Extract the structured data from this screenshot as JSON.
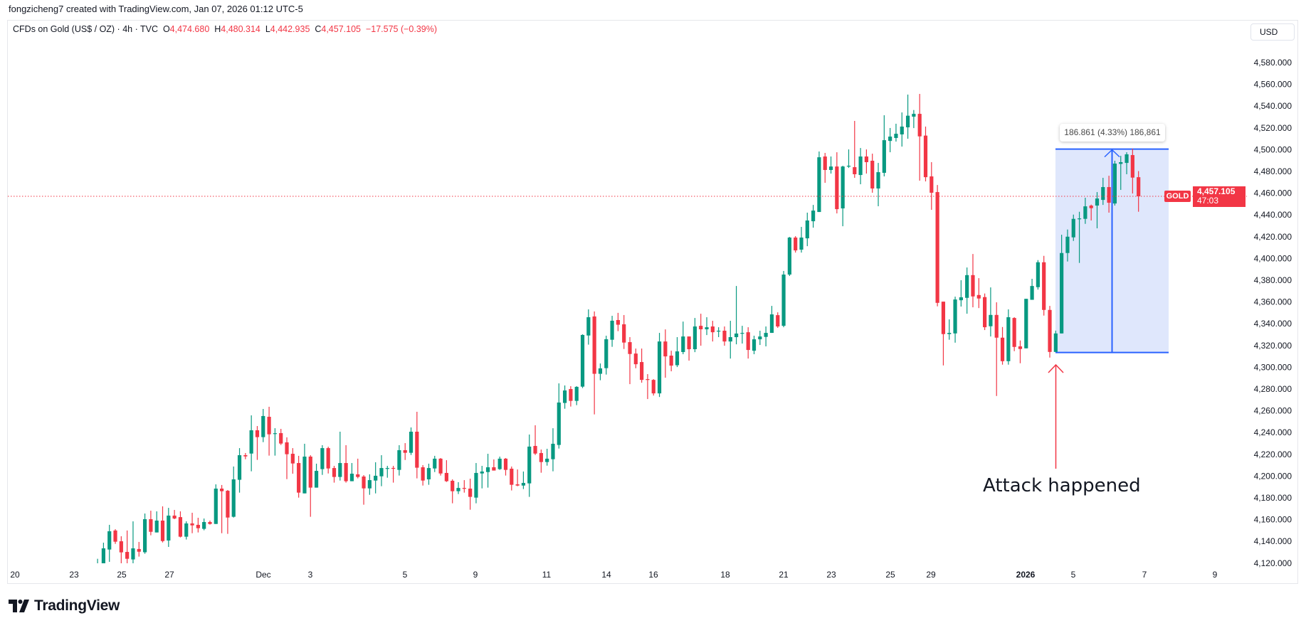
{
  "credit": "fongzicheng7 created with TradingView.com, Jan 07, 2026 01:12 UTC-5",
  "legend": {
    "symbol": "CFDs on Gold (US$ / OZ) · 4h · TVC",
    "o_label": "O",
    "o": "4,474.680",
    "h_label": "H",
    "h": "4,480.314",
    "l_label": "L",
    "l": "4,442.935",
    "c_label": "C",
    "c": "4,457.105",
    "change": "−17.575 (−0.39%)"
  },
  "currency_button": "USD",
  "price_tag": {
    "symbol": "GOLD",
    "price": "4,457.105",
    "countdown": "47:03"
  },
  "measure": {
    "label": "186.861 (4.33%) 186,861",
    "low": 4313.6,
    "high": 4500.5
  },
  "annotation": "Attack happened",
  "logo_text": "TradingView",
  "colors": {
    "up": "#089981",
    "down": "#f23645",
    "measure": "#2962ff",
    "measure_fill": "#dfe7fc",
    "arrow": "#f23645"
  },
  "chart_data": {
    "type": "candlestick",
    "title": "CFDs on Gold (US$ / OZ) · 4h · TVC",
    "interval": "4h",
    "last_price": 4457.105,
    "ylim": [
      4120,
      4580
    ],
    "y_ticks": [
      "4,580.000",
      "4,560.000",
      "4,540.000",
      "4,520.000",
      "4,500.000",
      "4,480.000",
      "4,460.000",
      "4,440.000",
      "4,420.000",
      "4,400.000",
      "4,380.000",
      "4,360.000",
      "4,340.000",
      "4,320.000",
      "4,300.000",
      "4,280.000",
      "4,260.000",
      "4,240.000",
      "4,220.000",
      "4,200.000",
      "4,180.000",
      "4,160.000",
      "4,140.000",
      "4,120.000"
    ],
    "x_ticks": [
      "20",
      "23",
      "25",
      "27",
      "Dec",
      "3",
      "5",
      "9",
      "11",
      "14",
      "16",
      "18",
      "21",
      "23",
      "25",
      "29",
      "2026",
      "5",
      "7",
      "9"
    ],
    "grid": false,
    "candles_ohlc": [
      [
        4118,
        4124,
        4118,
        4119.5
      ],
      [
        4118.8,
        4138.8,
        4118.1,
        4133.6
      ],
      [
        4132.5,
        4155.2,
        4121.2,
        4149.3
      ],
      [
        4150,
        4151.2,
        4137.7,
        4139.7
      ],
      [
        4140.1,
        4144.7,
        4118.1,
        4129.9
      ],
      [
        4130.3,
        4150,
        4118,
        4124
      ],
      [
        4123.4,
        4158.4,
        4118,
        4133.6
      ],
      [
        4133,
        4139.5,
        4126,
        4130.5
      ],
      [
        4130,
        4165.6,
        4128.6,
        4160.4
      ],
      [
        4160.4,
        4168.2,
        4145.6,
        4148.8
      ],
      [
        4148.2,
        4167.6,
        4148.2,
        4159.1
      ],
      [
        4159.1,
        4172.2,
        4139,
        4140.3
      ],
      [
        4140.8,
        4170.8,
        4134.9,
        4163.7
      ],
      [
        4163.7,
        4168.9,
        4160.4,
        4161
      ],
      [
        4162.3,
        4167.6,
        4143.6,
        4144.3
      ],
      [
        4144.3,
        4158.4,
        4141.7,
        4156.5
      ],
      [
        4156.5,
        4166.3,
        4147.5,
        4154.7
      ],
      [
        4155.2,
        4161.7,
        4148.2,
        4152.1
      ],
      [
        4151.5,
        4161,
        4150.2,
        4157.8
      ],
      [
        4157.8,
        4159.1,
        4155.4,
        4156
      ],
      [
        4156,
        4192.4,
        4156,
        4188.5
      ],
      [
        4188.5,
        4191.8,
        4147.5,
        4186.1
      ],
      [
        4186.5,
        4187.2,
        4146.9,
        4161.9
      ],
      [
        4162.6,
        4208.8,
        4161.9,
        4197
      ],
      [
        4196.6,
        4225.7,
        4184.8,
        4219.2
      ],
      [
        4219.2,
        4221.2,
        4215.5,
        4218.1
      ],
      [
        4220.7,
        4255.8,
        4204.4,
        4242.1
      ],
      [
        4242.1,
        4246,
        4214.9,
        4235.8
      ],
      [
        4235.8,
        4261.7,
        4231.2,
        4255.2
      ],
      [
        4254.5,
        4263.7,
        4218.8,
        4238.4
      ],
      [
        4239.2,
        4244,
        4218.8,
        4239.4
      ],
      [
        4239.5,
        4243.4,
        4228.6,
        4229.9
      ],
      [
        4231,
        4235.6,
        4197.2,
        4220.1
      ],
      [
        4220.5,
        4225.7,
        4202.2,
        4211.6
      ],
      [
        4212,
        4218.6,
        4180.2,
        4184.8
      ],
      [
        4184.1,
        4229.7,
        4184.1,
        4217.9
      ],
      [
        4217.9,
        4219.2,
        4162.6,
        4189.4
      ],
      [
        4189.4,
        4211.4,
        4189.4,
        4204.8
      ],
      [
        4206.4,
        4228.4,
        4201.1,
        4225.7
      ],
      [
        4225.7,
        4227,
        4202.4,
        4207
      ],
      [
        4207.4,
        4209.4,
        4194,
        4199.2
      ],
      [
        4199.2,
        4240.8,
        4195.9,
        4212
      ],
      [
        4212,
        4228.4,
        4194,
        4195.3
      ],
      [
        4195.3,
        4212,
        4195.3,
        4202.2
      ],
      [
        4201.6,
        4216,
        4197.9,
        4199.2
      ],
      [
        4199.6,
        4200.9,
        4173.7,
        4188.7
      ],
      [
        4188.7,
        4201.6,
        4182.8,
        4196.3
      ],
      [
        4195.9,
        4212.7,
        4184.1,
        4200.3
      ],
      [
        4199.8,
        4219.2,
        4190.7,
        4207.4
      ],
      [
        4206.9,
        4209.4,
        4198.5,
        4207.4
      ],
      [
        4207.5,
        4209.4,
        4194,
        4207
      ],
      [
        4205.7,
        4228.4,
        4200.5,
        4223.8
      ],
      [
        4223.8,
        4230.3,
        4214.8,
        4221.4
      ],
      [
        4221.4,
        4244.7,
        4219.4,
        4240.8
      ],
      [
        4240.8,
        4259.1,
        4197.9,
        4207.7
      ],
      [
        4208.1,
        4210.1,
        4191.3,
        4195.9
      ],
      [
        4197,
        4211.4,
        4192,
        4207.4
      ],
      [
        4207,
        4218.6,
        4203.7,
        4216
      ],
      [
        4216,
        4216.6,
        4200.5,
        4202.4
      ],
      [
        4202.9,
        4214.6,
        4194.6,
        4195.3
      ],
      [
        4195.7,
        4197,
        4175,
        4186.1
      ],
      [
        4186.1,
        4194.4,
        4183.5,
        4189.1
      ],
      [
        4189.1,
        4196.3,
        4184.8,
        4188.7
      ],
      [
        4188.5,
        4197.6,
        4169.1,
        4180.9
      ],
      [
        4180.2,
        4212,
        4175,
        4202.9
      ],
      [
        4202.4,
        4209.4,
        4188.7,
        4204.2
      ],
      [
        4203.7,
        4220.5,
        4189.4,
        4208.1
      ],
      [
        4208.1,
        4215.3,
        4205.1,
        4205.1
      ],
      [
        4206.4,
        4217.9,
        4205.7,
        4216
      ],
      [
        4216,
        4216.6,
        4200.5,
        4205.7
      ],
      [
        4206.8,
        4208.8,
        4186.8,
        4192
      ],
      [
        4192.4,
        4206.1,
        4190.7,
        4191.3
      ],
      [
        4191.3,
        4204.2,
        4188.1,
        4193.7
      ],
      [
        4193.3,
        4238.2,
        4180.9,
        4227.1
      ],
      [
        4227.7,
        4246.7,
        4219.4,
        4220.7
      ],
      [
        4221.2,
        4224.4,
        4203.1,
        4212.9
      ],
      [
        4212.9,
        4225.1,
        4209.6,
        4216
      ],
      [
        4215.5,
        4244,
        4204.4,
        4229.7
      ],
      [
        4228.6,
        4285.2,
        4225.3,
        4267.6
      ],
      [
        4267.2,
        4283.3,
        4261.9,
        4278.7
      ],
      [
        4280,
        4282.6,
        4263.9,
        4269.1
      ],
      [
        4269.1,
        4282.6,
        4265.2,
        4282
      ],
      [
        4282.2,
        4330.3,
        4280.9,
        4329.7
      ],
      [
        4329.2,
        4353.2,
        4320.8,
        4346
      ],
      [
        4346.7,
        4351.3,
        4256.7,
        4294
      ],
      [
        4294,
        4303.5,
        4288.1,
        4299
      ],
      [
        4299.2,
        4329,
        4293.3,
        4325.8
      ],
      [
        4325.3,
        4347.3,
        4318.8,
        4342.8
      ],
      [
        4343.4,
        4350,
        4333.2,
        4339.1
      ],
      [
        4339.5,
        4348,
        4316.8,
        4322.7
      ],
      [
        4323.1,
        4327.7,
        4284.5,
        4312.2
      ],
      [
        4312.6,
        4317.2,
        4299.1,
        4302.8
      ],
      [
        4304.8,
        4317.2,
        4285.8,
        4288.4
      ],
      [
        4289.1,
        4293.7,
        4270.8,
        4288.6
      ],
      [
        4288.4,
        4289.1,
        4274,
        4276
      ],
      [
        4276,
        4331.6,
        4272.7,
        4323.7
      ],
      [
        4323.7,
        4334.8,
        4290.4,
        4310
      ],
      [
        4310.7,
        4315.2,
        4296.3,
        4301.5
      ],
      [
        4301.9,
        4327.7,
        4300.2,
        4314.6
      ],
      [
        4314,
        4342,
        4312,
        4328.3
      ],
      [
        4328.3,
        4328.3,
        4306.1,
        4316.6
      ],
      [
        4316.6,
        4345.3,
        4313.9,
        4337.5
      ],
      [
        4338.1,
        4349.2,
        4319.8,
        4334.9
      ],
      [
        4334.9,
        4346,
        4329.6,
        4336.8
      ],
      [
        4337.5,
        4342.7,
        4323.7,
        4332.2
      ],
      [
        4333.2,
        4336.8,
        4327.7,
        4333.6
      ],
      [
        4333.6,
        4337.5,
        4319.8,
        4323.7
      ],
      [
        4323.7,
        4342.7,
        4308,
        4327.7
      ],
      [
        4327.7,
        4374.7,
        4321.1,
        4331
      ],
      [
        4331.3,
        4338.1,
        4321.8,
        4331.6
      ],
      [
        4332.2,
        4336.8,
        4308,
        4315.9
      ],
      [
        4315.2,
        4329,
        4312,
        4325.7
      ],
      [
        4325.7,
        4333.6,
        4320.5,
        4328.3
      ],
      [
        4327.9,
        4337.5,
        4319.2,
        4331.6
      ],
      [
        4331.6,
        4356.4,
        4331.6,
        4348.6
      ],
      [
        4347.9,
        4350.5,
        4336.2,
        4337.5
      ],
      [
        4338.1,
        4388.5,
        4336.8,
        4385.2
      ],
      [
        4385.2,
        4419.8,
        4383.9,
        4419.2
      ],
      [
        4419.2,
        4420.5,
        4405.4,
        4407.4
      ],
      [
        4408.1,
        4429,
        4405.4,
        4419.2
      ],
      [
        4418.5,
        4442.1,
        4411.3,
        4434.9
      ],
      [
        4434.2,
        4449.2,
        4428.3,
        4444
      ],
      [
        4442.7,
        4498.3,
        4442.7,
        4493
      ],
      [
        4493.7,
        4497,
        4469.5,
        4481.3
      ],
      [
        4481.3,
        4493.7,
        4478,
        4484.5
      ],
      [
        4484.5,
        4497.6,
        4441.4,
        4445.3
      ],
      [
        4446,
        4485.2,
        4429.6,
        4484.5
      ],
      [
        4484.4,
        4500.2,
        4483.2,
        4485.2
      ],
      [
        4483.9,
        4526.4,
        4474.1,
        4477.4
      ],
      [
        4476.7,
        4501.5,
        4468.2,
        4493.7
      ],
      [
        4493.7,
        4500.2,
        4478,
        4488.5
      ],
      [
        4489.8,
        4496.3,
        4460.4,
        4464.3
      ],
      [
        4464.3,
        4487.8,
        4448,
        4479.3
      ],
      [
        4478.7,
        4531.6,
        4475.4,
        4508.7
      ],
      [
        4508,
        4519.9,
        4497.6,
        4512
      ],
      [
        4510.7,
        4523.8,
        4507.4,
        4514.6
      ],
      [
        4514,
        4534.2,
        4502.8,
        4521.2
      ],
      [
        4520.5,
        4550.6,
        4510,
        4531.2
      ],
      [
        4530.3,
        4536.4,
        4519.8,
        4532.9
      ],
      [
        4532.9,
        4551.2,
        4471.5,
        4512.2
      ],
      [
        4512.9,
        4521.2,
        4470.8,
        4474.7
      ],
      [
        4475.4,
        4488.5,
        4444.7,
        4460.4
      ],
      [
        4461,
        4467.5,
        4356,
        4359.2
      ],
      [
        4360.3,
        4360.3,
        4301.7,
        4330.5
      ],
      [
        4330.5,
        4344,
        4325.3,
        4331.6
      ],
      [
        4331.1,
        4364.9,
        4322.6,
        4362.3
      ],
      [
        4361.6,
        4380,
        4355.8,
        4364.3
      ],
      [
        4363.8,
        4391.7,
        4349.2,
        4384.7
      ],
      [
        4384.7,
        4404.1,
        4355.1,
        4365.1
      ],
      [
        4366.4,
        4381.9,
        4354.4,
        4363.2
      ],
      [
        4364.5,
        4367.8,
        4334.2,
        4336.8
      ],
      [
        4337.7,
        4373.4,
        4328.3,
        4348.1
      ],
      [
        4348.1,
        4359.7,
        4273.6,
        4327.2
      ],
      [
        4327.2,
        4337,
        4302.4,
        4305.6
      ],
      [
        4305.6,
        4353.2,
        4302.4,
        4346
      ],
      [
        4345.3,
        4346,
        4314.8,
        4318.7
      ],
      [
        4319.2,
        4324.6,
        4303.7,
        4316.8
      ],
      [
        4317.4,
        4362.9,
        4317.4,
        4362.9
      ],
      [
        4362,
        4381.3,
        4362,
        4374.7
      ],
      [
        4373.6,
        4398.5,
        4371.4,
        4396.5
      ],
      [
        4396.5,
        4402.4,
        4347.5,
        4352.7
      ],
      [
        4352.7,
        4356.4,
        4308.9,
        4314.1
      ],
      [
        4314.1,
        4333.7,
        4314.1,
        4331.1
      ],
      [
        4331.1,
        4421.8,
        4331.1,
        4405
      ],
      [
        4405,
        4426.6,
        4397.2,
        4420
      ],
      [
        4419.4,
        4440.3,
        4416.1,
        4436.4
      ],
      [
        4436.4,
        4442.9,
        4395.9,
        4436.8
      ],
      [
        4436.4,
        4455.8,
        4431.8,
        4447.9
      ],
      [
        4448.6,
        4449.5,
        4434.9,
        4446.2
      ],
      [
        4448.6,
        4461,
        4427.7,
        4455.1
      ],
      [
        4453.8,
        4474.1,
        4449.2,
        4465.6
      ],
      [
        4465.6,
        4476,
        4442.1,
        4451.2
      ],
      [
        4450.5,
        4489.8,
        4448.6,
        4487.2
      ],
      [
        4486.9,
        4494.3,
        4463,
        4488.5
      ],
      [
        4487.8,
        4497.6,
        4477.4,
        4495.7
      ],
      [
        4495,
        4500.9,
        4459.7,
        4474.3
      ],
      [
        4474.68,
        4480.314,
        4442.935,
        4457.105
      ]
    ]
  }
}
